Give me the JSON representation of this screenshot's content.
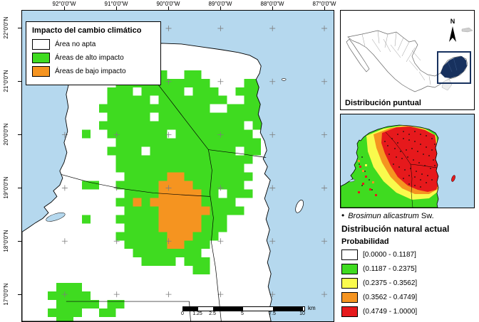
{
  "colors": {
    "ocean": "#b5d8ee",
    "land": "#ffffff",
    "high_impact": "#3fdb20",
    "low_impact": "#f59420",
    "prob_white": "#ffffff",
    "prob_green": "#3fdb20",
    "prob_yellow": "#f9fa4d",
    "prob_orange": "#f59420",
    "prob_red": "#e6191c",
    "inset_highlight": "#17315e"
  },
  "main_map": {
    "legend": {
      "title": "Impacto del cambio climático",
      "items": [
        {
          "label": "Área no apta",
          "color": "#ffffff"
        },
        {
          "label": "Áreas de alto impacto",
          "color": "#3fdb20"
        },
        {
          "label": "Áreas de bajo impacto",
          "color": "#f59420"
        }
      ]
    },
    "longitude_labels": [
      "92°0'0\"W",
      "91°0'0\"W",
      "90°0'0\"W",
      "89°0'0\"W",
      "88°0'0\"W",
      "87°0'0\"W"
    ],
    "latitude_labels": [
      "22°0'0\"N",
      "21°0'0\"N",
      "20°0'0\"N",
      "19°0'0\"N",
      "18°0'0\"N",
      "17°0'0\"N"
    ],
    "scale_bar": {
      "tick_labels": [
        "0",
        "1.25",
        "2.5",
        "5",
        "7.5",
        "10"
      ],
      "unit": "km"
    }
  },
  "inset_mexico": {
    "caption": "Distribución puntual",
    "north_label": "N"
  },
  "inset_distribution": {
    "species_label": {
      "bullet": "•",
      "name": "Brosimun alicastrum",
      "authority": "Sw."
    },
    "title": "Distribución natural actual",
    "legend_title": "Probabilidad",
    "classes": [
      {
        "label": "[0.0000 - 0.1187]",
        "color": "#ffffff"
      },
      {
        "label": "(0.1187 - 0.2375]",
        "color": "#3fdb20"
      },
      {
        "label": "(0.2375 - 0.3562]",
        "color": "#f9fa4d"
      },
      {
        "label": "(0.3562 - 0.4749]",
        "color": "#f59420"
      },
      {
        "label": "(0.4749 - 1.0000]",
        "color": "#e6191c"
      }
    ]
  }
}
